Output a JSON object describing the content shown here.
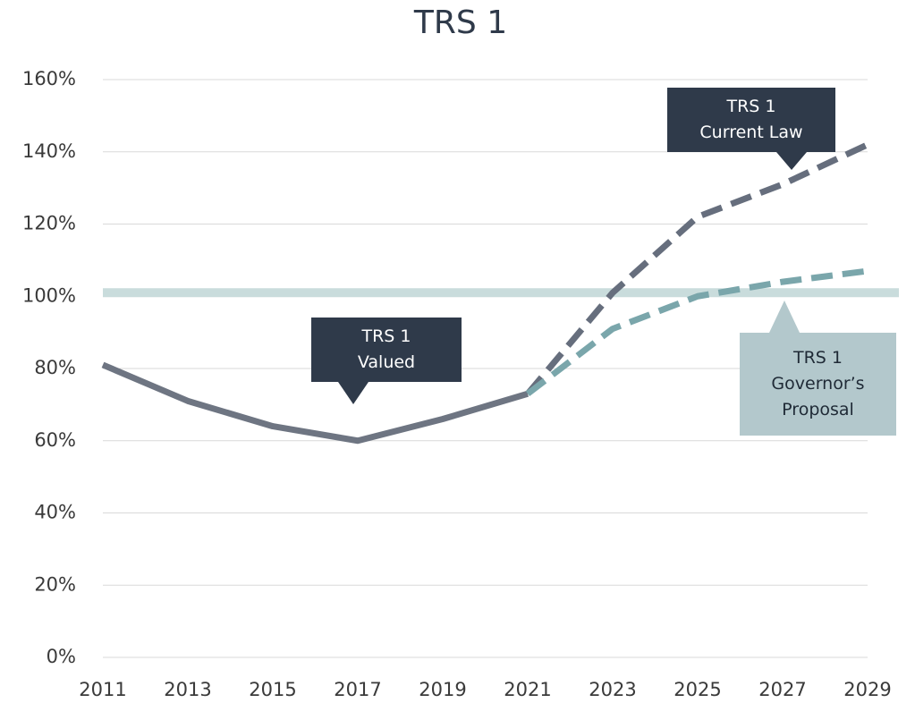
{
  "chart_data": {
    "type": "line",
    "title": "TRS 1",
    "x": [
      2011,
      2013,
      2015,
      2017,
      2019,
      2021,
      2023,
      2025,
      2027,
      2029
    ],
    "xlim": [
      2011,
      2029
    ],
    "xticks": [
      2011,
      2013,
      2015,
      2017,
      2019,
      2021,
      2023,
      2025,
      2027,
      2029
    ],
    "ylim": [
      0,
      160
    ],
    "yticks": [
      {
        "value": 0,
        "label": "0%"
      },
      {
        "value": 20,
        "label": "20%"
      },
      {
        "value": 40,
        "label": "40%"
      },
      {
        "value": 60,
        "label": "60%"
      },
      {
        "value": 80,
        "label": "80%"
      },
      {
        "value": 100,
        "label": "100%"
      },
      {
        "value": 120,
        "label": "120%"
      },
      {
        "value": 140,
        "label": "140%"
      },
      {
        "value": 160,
        "label": "160%"
      }
    ],
    "grid": true,
    "reference_line": {
      "value": 101,
      "color": "#c9dcdc"
    },
    "series": [
      {
        "color": "#6e7582",
        "dashed": false,
        "values": [
          81,
          71,
          64,
          60,
          66,
          73,
          null,
          null,
          null,
          null
        ]
      },
      {
        "color": "#666e7d",
        "dashed": true,
        "values": [
          null,
          null,
          null,
          null,
          null,
          73,
          101,
          122,
          131,
          142
        ]
      },
      {
        "color": "#7aa6ab",
        "dashed": true,
        "values": [
          null,
          null,
          null,
          null,
          null,
          73,
          91,
          100,
          104,
          107
        ]
      }
    ],
    "annotations": [
      {
        "lines": [
          "TRS 1",
          "Valued"
        ],
        "color": "#2f3a4a",
        "text_color": "#ffffff"
      },
      {
        "lines": [
          "TRS 1",
          "Current Law"
        ],
        "color": "#2f3a4a",
        "text_color": "#ffffff"
      },
      {
        "lines": [
          "TRS 1",
          "Governor’s",
          "Proposal"
        ],
        "color": "#b3c8cc",
        "text_color": "#1f2a36"
      }
    ]
  }
}
